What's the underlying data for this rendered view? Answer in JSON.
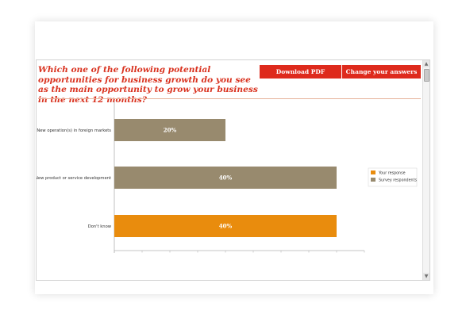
{
  "question": "Which one of the following potential opportunities for business growth do you see as the main opportunity to grow your business in the next 12 months?",
  "buttons": {
    "download_pdf": "Download PDF",
    "change_answers": "Change your answers"
  },
  "chart_data": {
    "type": "bar",
    "orientation": "horizontal",
    "categories": [
      "New operation(s) in foreign markets",
      "New product or service development",
      "Don't know"
    ],
    "values": [
      20,
      40,
      40
    ],
    "value_labels": [
      "20%",
      "40%",
      "40%"
    ],
    "bar_series": [
      "Survey respondents",
      "Survey respondents",
      "Your response"
    ],
    "series": [
      {
        "name": "Your response",
        "color": "#e98c0d"
      },
      {
        "name": "Survey respondents",
        "color": "#988a6e"
      }
    ],
    "xlim": [
      0,
      45
    ],
    "grid": false,
    "legend_position": "right"
  }
}
